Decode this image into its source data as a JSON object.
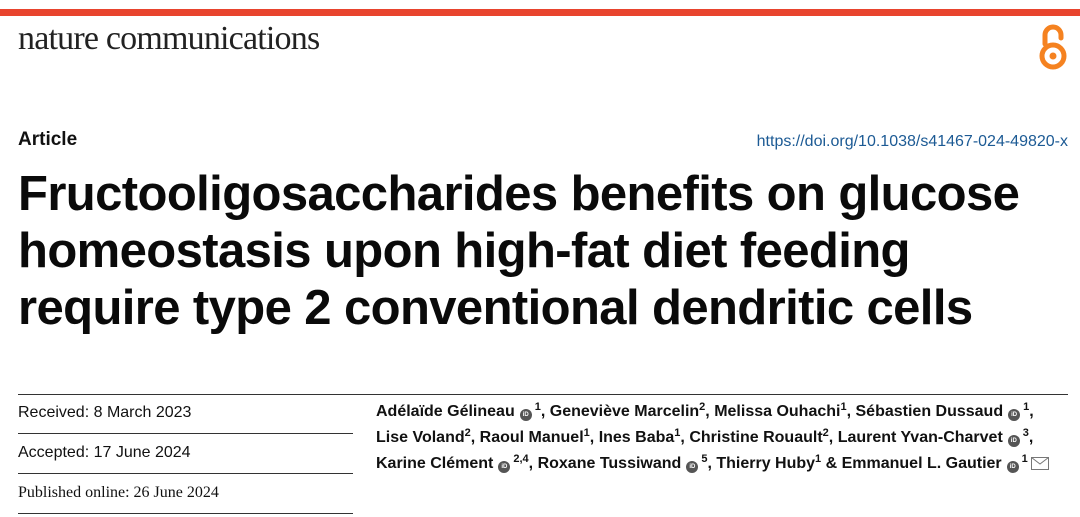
{
  "journal": "nature communications",
  "article_type": "Article",
  "doi": "https://doi.org/10.1038/s41467-024-49820-x",
  "title": "Fructooligosaccharides benefits on glucose homeostasis upon high-fat diet feeding require type 2 conventional dendritic cells",
  "dates": {
    "received": "Received: 8 March 2023",
    "accepted": "Accepted: 17 June 2024",
    "published": "Published online: 26 June 2024"
  },
  "orcid_label": "iD",
  "authors": [
    {
      "name": "Adélaïde Gélineau",
      "orcid": true,
      "aff": "1",
      "sep": ","
    },
    {
      "name": "Geneviève Marcelin",
      "orcid": false,
      "aff": "2",
      "sep": ","
    },
    {
      "name": "Melissa Ouhachi",
      "orcid": false,
      "aff": "1",
      "sep": ","
    },
    {
      "name": "Sébastien Dussaud",
      "orcid": true,
      "aff": "1",
      "sep": ","
    },
    {
      "name": "Lise Voland",
      "orcid": false,
      "aff": "2",
      "sep": ","
    },
    {
      "name": "Raoul Manuel",
      "orcid": false,
      "aff": "1",
      "sep": ","
    },
    {
      "name": "Ines Baba",
      "orcid": false,
      "aff": "1",
      "sep": ","
    },
    {
      "name": "Christine Rouault",
      "orcid": false,
      "aff": "2",
      "sep": ","
    },
    {
      "name": "Laurent Yvan-Charvet",
      "orcid": true,
      "aff": "3",
      "sep": ","
    },
    {
      "name": "Karine Clément",
      "orcid": true,
      "aff": "2,4",
      "sep": ","
    },
    {
      "name": "Roxane Tussiwand",
      "orcid": true,
      "aff": "5",
      "sep": ","
    },
    {
      "name": "Thierry Huby",
      "orcid": false,
      "aff": "1",
      "sep": " &"
    },
    {
      "name": "Emmanuel L. Gautier",
      "orcid": true,
      "aff": "1",
      "sep": ""
    }
  ],
  "icons": {
    "open_access": "open-access-icon",
    "orcid": "orcid-icon",
    "mail": "mail-icon"
  },
  "colors": {
    "accent_bar": "#e8442e",
    "open_access": "#f58220",
    "doi_link": "#1c5a94"
  }
}
